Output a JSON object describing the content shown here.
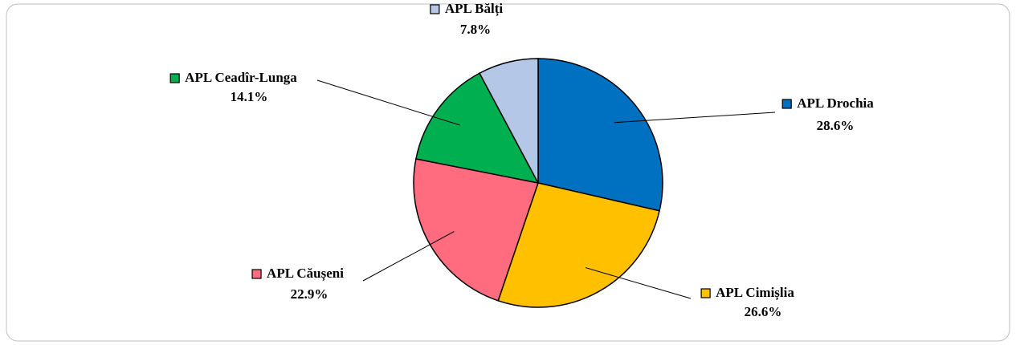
{
  "chart_data": {
    "type": "pie",
    "categories": [
      "APL Drochia",
      "APL Cimișlia",
      "APL Căușeni",
      "APL Ceadîr-Lunga",
      "APL Bălți"
    ],
    "values": [
      28.6,
      26.6,
      22.9,
      14.1,
      7.8
    ],
    "value_labels": [
      "28.6%",
      "26.6%",
      "22.9%",
      "14.1%",
      "7.8%"
    ],
    "colors": [
      "#0070C0",
      "#FFC000",
      "#FF6B7F",
      "#00B050",
      "#B4C7E7"
    ]
  }
}
